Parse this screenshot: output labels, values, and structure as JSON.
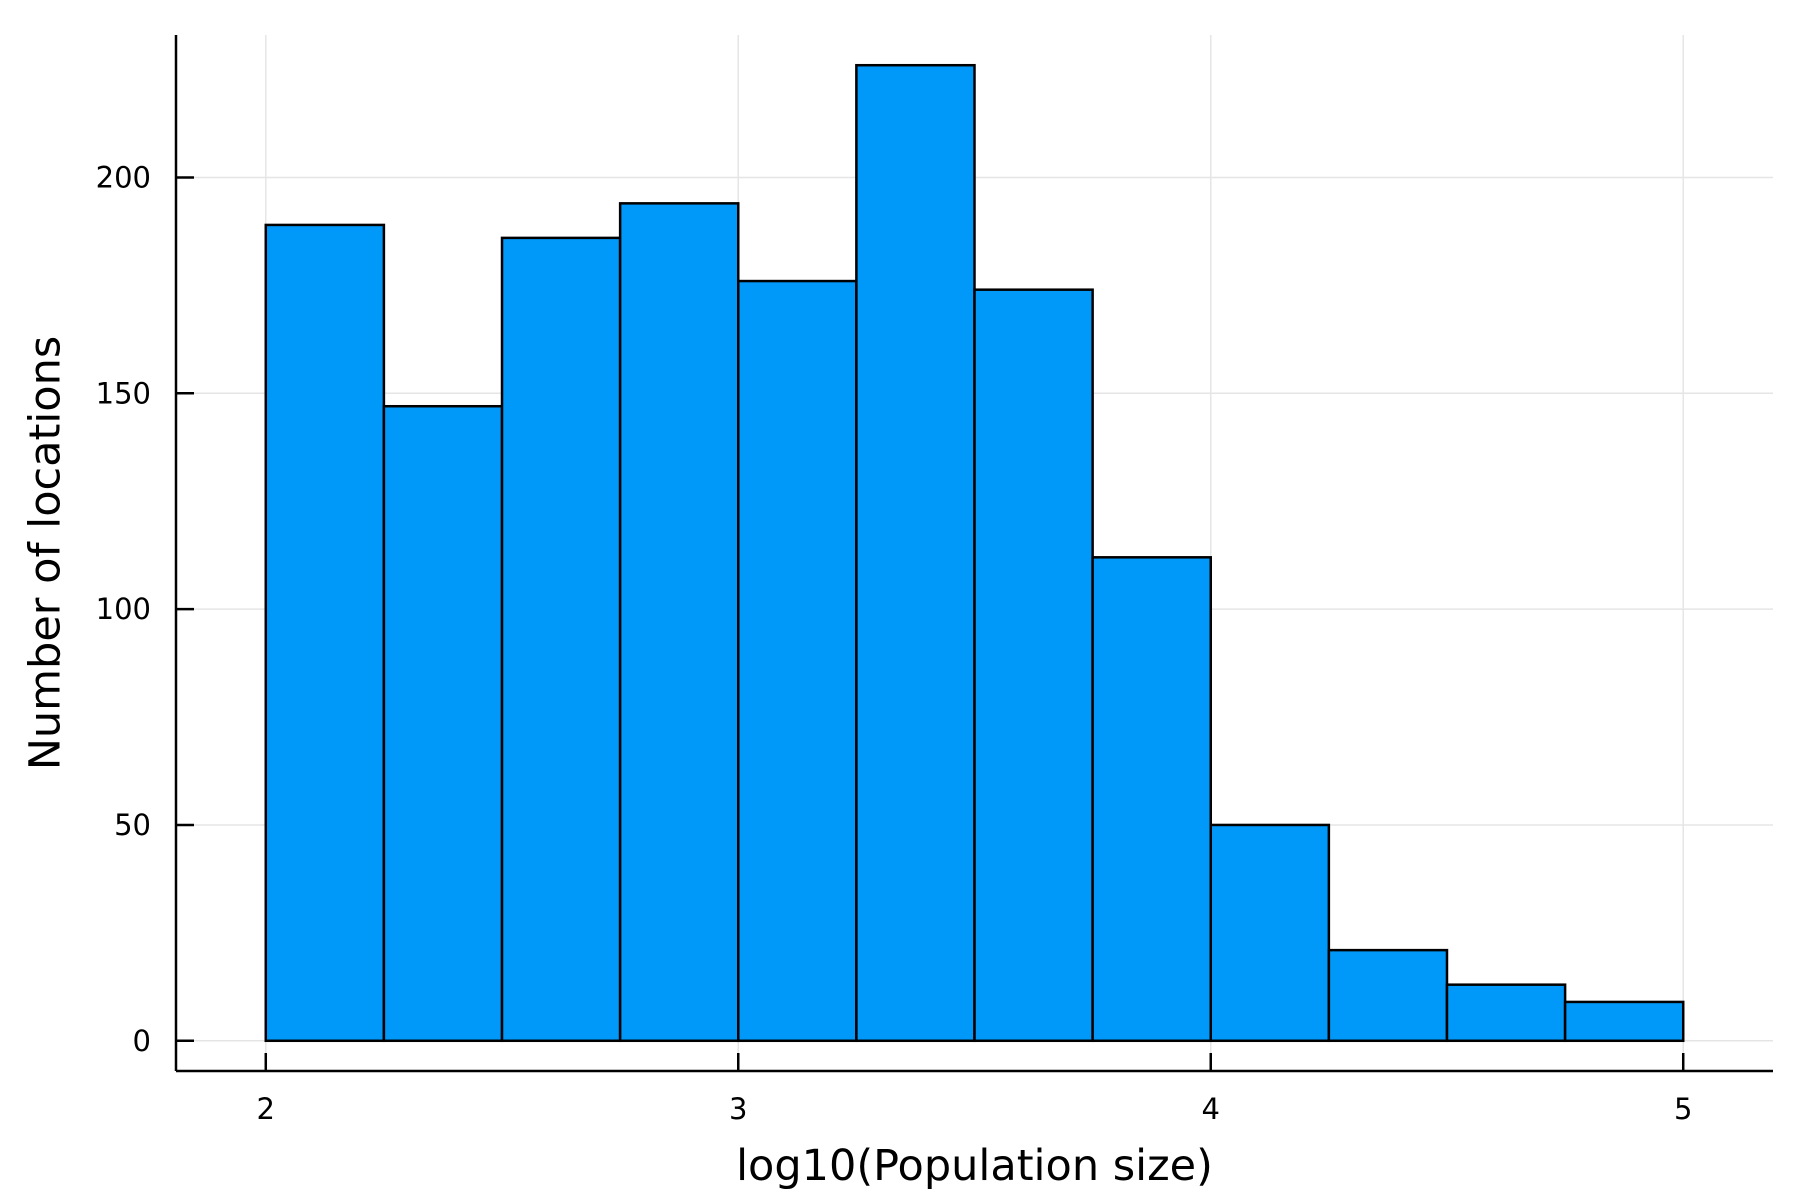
{
  "chart_data": {
    "type": "bar",
    "histogram": true,
    "bin_edges": [
      2.0,
      2.25,
      2.5,
      2.75,
      3.0,
      3.25,
      3.5,
      3.75,
      4.0,
      4.25,
      4.5,
      4.75,
      5.0
    ],
    "values": [
      189,
      147,
      186,
      194,
      176,
      226,
      174,
      112,
      50,
      21,
      13,
      9
    ],
    "xlabel": "log10(Population size)",
    "ylabel": "Number of locations",
    "xlim": [
      1.81,
      5.19
    ],
    "ylim": [
      -7,
      233
    ],
    "xticks": [
      2,
      3,
      4,
      5
    ],
    "xtick_labels": [
      "2",
      "3",
      "4",
      "5"
    ],
    "yticks": [
      0,
      50,
      100,
      150,
      200
    ],
    "ytick_labels": [
      "0",
      "50",
      "100",
      "150",
      "200"
    ],
    "grid": true,
    "legend": "none",
    "colors": {
      "bar_fill": "#0099fa",
      "bar_edge": "#000000",
      "grid": "#e5e5e5"
    }
  }
}
